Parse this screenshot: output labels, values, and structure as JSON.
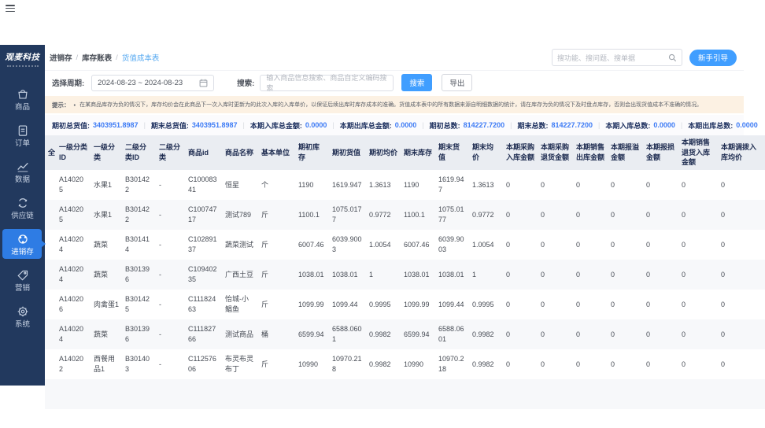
{
  "topbar": {
    "menu_icon": "hamburger-menu-icon"
  },
  "sidebar": {
    "logo": "观麦科技",
    "active_color": "#2e7ce4",
    "bg_color": "#22395e",
    "items": [
      {
        "label": "商品",
        "icon": "goods-bag-icon",
        "active": false
      },
      {
        "label": "订单",
        "icon": "orders-doc-icon",
        "active": false
      },
      {
        "label": "数据",
        "icon": "data-chart-icon",
        "active": false
      },
      {
        "label": "供应链",
        "icon": "supply-chain-icon",
        "active": false
      },
      {
        "label": "进销存",
        "icon": "inventory-icon",
        "active": true
      },
      {
        "label": "营销",
        "icon": "marketing-tag-icon",
        "active": false
      },
      {
        "label": "系统",
        "icon": "system-gear-icon",
        "active": false
      }
    ]
  },
  "header": {
    "breadcrumb": [
      "进销存",
      "库存账表",
      "货值成本表"
    ],
    "breadcrumb_separator": "/",
    "global_search_placeholder": "搜功能、搜问题、搜单据",
    "search_icon": "search-icon",
    "guide_button": "新手引导"
  },
  "filters": {
    "period_label": "选择周期:",
    "period_value": "2024-08-23 ~ 2024-08-23",
    "calendar_icon": "calendar-icon",
    "search_label": "搜索:",
    "search_placeholder": "输入商品信息搜索、商品自定义编码搜索",
    "search_button": "搜索",
    "export_button": "导出"
  },
  "notice": {
    "prefix": "提示：",
    "bullet": "•",
    "text": "在某商品库存为负的情况下，库存均价会在此商品下一次入库时更新为的此次入库的入库单价，以保证后续出库时库存成本的准确。货值成本表中的所有数据来源自明细数据的统计，请在库存为负的情况下及时盘点库存，否则会出现货值成本不准确的情况。"
  },
  "stats": {
    "divider": "|",
    "items": [
      {
        "label": "期初总货值:",
        "value": "3403951.8987"
      },
      {
        "label": "期末总货值:",
        "value": "3403951.8987"
      },
      {
        "label": "本期入库总金额:",
        "value": "0.0000"
      },
      {
        "label": "本期出库总金额:",
        "value": "0.0000"
      },
      {
        "label": "期初总数:",
        "value": "814227.7200"
      },
      {
        "label": "期末总数:",
        "value": "814227.7200"
      },
      {
        "label": "本期入库总数:",
        "value": "0.0000"
      },
      {
        "label": "本期出库总数:",
        "value": "0.0000"
      }
    ]
  },
  "table": {
    "columns": [
      "全",
      "一级分类ID",
      "一级分类",
      "二级分类ID",
      "二级分类",
      "商品id",
      "商品名称",
      "基本单位",
      "期初库存",
      "期初货值",
      "期初均价",
      "期末库存",
      "期末货值",
      "期末均价",
      "本期采购入库金额",
      "本期采购退货金额",
      "本期销售出库金额",
      "本期报溢金额",
      "本期报损金额",
      "本期销售退货入库金额",
      "本期调拨入库均价"
    ],
    "rows": [
      [
        "",
        "A140205",
        "水果1",
        "B301422",
        "-",
        "C10008341",
        "恒星",
        "个",
        "1190",
        "1619.947",
        "1.3613",
        "1190",
        "1619.947",
        "1.3613",
        "0",
        "0",
        "0",
        "0",
        "0",
        "0",
        "0"
      ],
      [
        "",
        "A140205",
        "水果1",
        "B301422",
        "-",
        "C10074717",
        "测试789",
        "斤",
        "1100.1",
        "1075.0177",
        "0.9772",
        "1100.1",
        "1075.0177",
        "0.9772",
        "0",
        "0",
        "0",
        "0",
        "0",
        "0",
        "0"
      ],
      [
        "",
        "A140204",
        "蔬菜",
        "B301414",
        "-",
        "C10289137",
        "蔬菜测试",
        "斤",
        "6007.46",
        "6039.9003",
        "1.0054",
        "6007.46",
        "6039.9003",
        "1.0054",
        "0",
        "0",
        "0",
        "0",
        "0",
        "0",
        "0"
      ],
      [
        "",
        "A140204",
        "蔬菜",
        "B301396",
        "-",
        "C10940235",
        "广西土豆",
        "斤",
        "1038.01",
        "1038.01",
        "1",
        "1038.01",
        "1038.01",
        "1",
        "0",
        "0",
        "0",
        "0",
        "0",
        "0",
        "0"
      ],
      [
        "",
        "A140206",
        "肉禽蛋1",
        "B301425",
        "-",
        "C11182463",
        "怡城-小鲳鱼",
        "斤",
        "1099.99",
        "1099.44",
        "0.9995",
        "1099.99",
        "1099.44",
        "0.9995",
        "0",
        "0",
        "0",
        "0",
        "0",
        "0",
        "0"
      ],
      [
        "",
        "A140204",
        "蔬菜",
        "B301396",
        "-",
        "C11182766",
        "测试商品",
        "桶",
        "6599.94",
        "6588.0601",
        "0.9982",
        "6599.94",
        "6588.0601",
        "0.9982",
        "0",
        "0",
        "0",
        "0",
        "0",
        "0",
        "0"
      ],
      [
        "",
        "A140202",
        "西餐用品1",
        "B301403",
        "-",
        "C11257606",
        "布灵布灵布丁",
        "斤",
        "10990",
        "10970.218",
        "0.9982",
        "10990",
        "10970.218",
        "0.9982",
        "0",
        "0",
        "0",
        "0",
        "0",
        "0",
        "0"
      ],
      [
        "",
        "",
        "",
        "",
        "",
        "",
        "",
        "",
        "",
        "",
        "",
        "",
        "",
        "",
        "",
        "",
        "",
        "",
        "",
        "",
        ""
      ]
    ]
  }
}
